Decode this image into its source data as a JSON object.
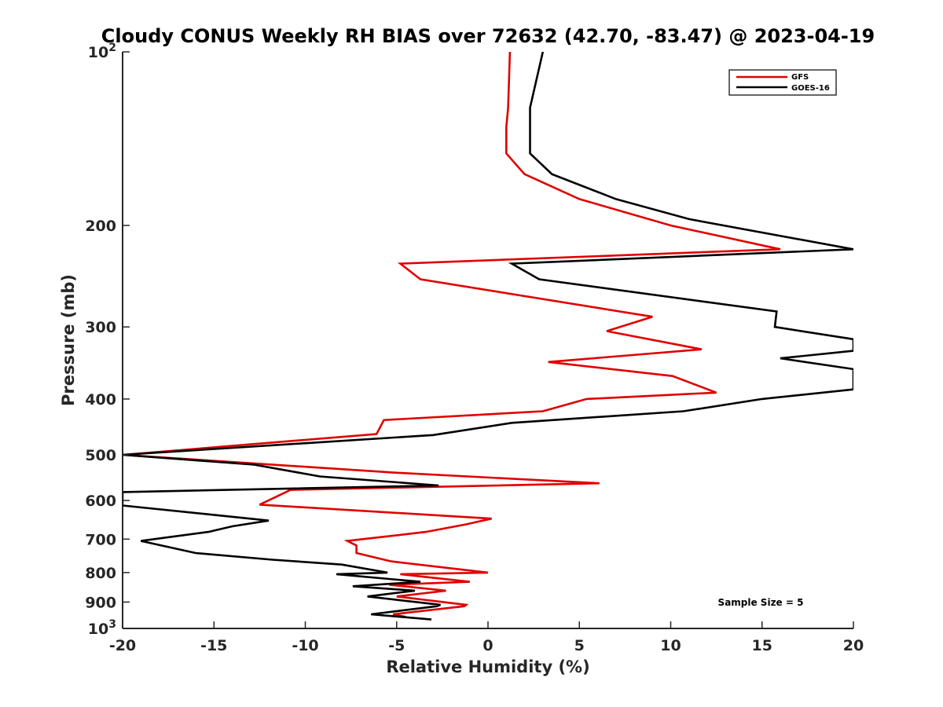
{
  "chart_data": {
    "type": "line",
    "title": "Cloudy CONUS Weekly RH BIAS over 72632 (42.70, -83.47) @ 2023-04-19",
    "xlabel": "Relative Humidity (%)",
    "ylabel": "Pressure (mb)",
    "xlim": [
      -20,
      20
    ],
    "ylim": [
      100,
      1000
    ],
    "y_scale": "log",
    "y_reversed": true,
    "grid": false,
    "legend_location": "top-right",
    "x_ticks": [
      "-20",
      "-15",
      "-10",
      "-5",
      "0",
      "5",
      "10",
      "15",
      "20"
    ],
    "x_tick_values": [
      -20,
      -15,
      -10,
      -5,
      0,
      5,
      10,
      15,
      20
    ],
    "y_ticks": [
      {
        "value": 100,
        "base": "10",
        "exp": "2"
      },
      {
        "value": 200,
        "label": "200"
      },
      {
        "value": 300,
        "label": "300"
      },
      {
        "value": 400,
        "label": "400"
      },
      {
        "value": 500,
        "label": "500"
      },
      {
        "value": 600,
        "label": "600"
      },
      {
        "value": 700,
        "label": "700"
      },
      {
        "value": 800,
        "label": "800"
      },
      {
        "value": 900,
        "label": "900"
      },
      {
        "value": 1000,
        "base": "10",
        "exp": "3"
      }
    ],
    "annotation": "Sample Size = 5",
    "series": [
      {
        "name": "GFS",
        "color": "#e00000",
        "x": [
          1.2,
          1.1,
          1.0,
          1.0,
          2.0,
          5.0,
          10.0,
          16.0,
          -4.8,
          -3.7,
          9.0,
          6.5,
          11.7,
          3.3,
          10.1,
          12.5,
          5.4,
          3.0,
          -5.7,
          -6.1,
          -20.0,
          -5.0,
          6.1,
          -10.8,
          -12.5,
          0.2,
          -1.2,
          -3.4,
          -7.7,
          -7.2,
          -7.2,
          -5.3,
          0.0,
          -4.8,
          -1.0,
          -5.4,
          -2.3,
          -5.0,
          -1.2,
          -1.3,
          -5.2,
          -4.5
        ],
        "y": [
          100,
          125,
          135,
          150,
          163,
          180,
          200,
          220,
          233,
          248,
          288,
          305,
          328,
          345,
          365,
          390,
          400,
          420,
          435,
          460,
          500,
          537,
          560,
          575,
          610,
          645,
          660,
          680,
          705,
          718,
          740,
          765,
          800,
          805,
          830,
          840,
          860,
          880,
          910,
          915,
          945,
          955
        ],
        "values": [
          1.2,
          1.1,
          1.0,
          1.0,
          2.0,
          5.0,
          10.0,
          16.0,
          -4.8,
          -3.7,
          9.0,
          6.5,
          11.7,
          3.3,
          10.1,
          12.5,
          5.4,
          3.0,
          -5.7,
          -6.1,
          -20.0,
          -5.0,
          6.1,
          -10.8,
          -12.5,
          0.2,
          -1.2,
          -3.4,
          -7.7,
          -7.2,
          -7.2,
          -5.3,
          0.0,
          -4.8,
          -1.0,
          -5.4,
          -2.3,
          -5.0,
          -1.2,
          -1.3,
          -5.2,
          -4.5
        ]
      },
      {
        "name": "GOES-16",
        "color": "#000000",
        "x": [
          3.0,
          2.3,
          2.3,
          2.3,
          3.5,
          7.0,
          11.0,
          20.0,
          1.3,
          2.8,
          15.8,
          15.7,
          20.0,
          20.0,
          16.0,
          20.0,
          20.0,
          15.0,
          10.7,
          1.3,
          -3.0,
          -20.0,
          -12.8,
          -9.2,
          -2.7,
          -20.0,
          -20.0,
          -12.0,
          -14.0,
          -15.3,
          -19.0,
          -16.0,
          -11.8,
          -8.0,
          -5.5,
          -8.3,
          -3.7,
          -7.4,
          -4.0,
          -6.6,
          -2.6,
          -2.8,
          -6.4,
          -3.1
        ],
        "y": [
          100,
          125,
          135,
          150,
          163,
          180,
          195,
          220,
          233,
          248,
          282,
          300,
          315,
          330,
          340,
          355,
          385,
          400,
          420,
          440,
          462,
          500,
          520,
          545,
          565,
          580,
          612,
          650,
          665,
          680,
          705,
          740,
          760,
          775,
          800,
          805,
          830,
          845,
          860,
          880,
          910,
          915,
          945,
          965
        ],
        "values": [
          3.0,
          2.3,
          2.3,
          2.3,
          3.5,
          7.0,
          11.0,
          20.0,
          1.3,
          2.8,
          15.8,
          15.7,
          20.0,
          20.0,
          16.0,
          20.0,
          20.0,
          15.0,
          10.7,
          1.3,
          -3.0,
          -20.0,
          -12.8,
          -9.2,
          -2.7,
          -20.0,
          -20.0,
          -12.0,
          -14.0,
          -15.3,
          -19.0,
          -16.0,
          -11.8,
          -8.0,
          -5.5,
          -8.3,
          -3.7,
          -7.4,
          -4.0,
          -6.6,
          -2.6,
          -2.8,
          -6.4,
          -3.1
        ]
      }
    ]
  }
}
